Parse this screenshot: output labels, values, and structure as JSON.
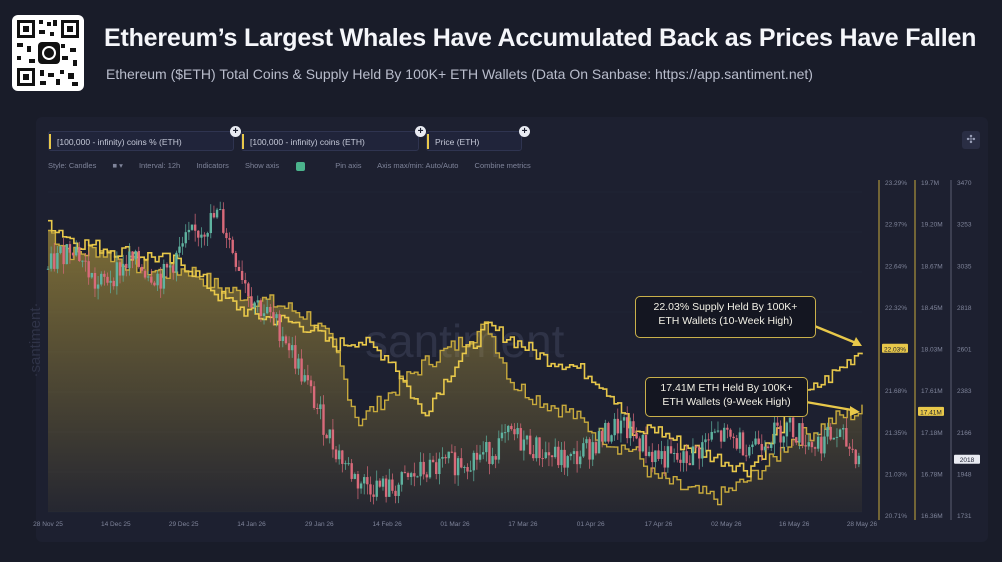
{
  "header": {
    "title": "Ethereum’s Largest Whales Have Accumulated Back as Prices Have Fallen",
    "subtitle": "Ethereum ($ETH) Total Coins & Supply Held By 100K+ ETH Wallets (Data On Sanbase: https://app.santiment.net)"
  },
  "toolbar": {
    "metric_1": "[100,000 - infinity) coins % (ETH)",
    "metric_2": "[100,000 - infinity) coins (ETH)",
    "metric_3": "Price (ETH)",
    "style": "Style: Candles",
    "interval": "Interval: 12h",
    "indicators": "Indicators",
    "show_axis": "Show axis",
    "pin_axis": "Pin axis",
    "axis_minmax": "Axis max/min: Auto/Auto",
    "combine": "Combine metrics"
  },
  "watermark": {
    "logo": "santiment",
    "side": "·santiment·"
  },
  "callouts": {
    "supply": {
      "line1": "22.03% Supply Held By 100K+",
      "line2": "ETH Wallets (10-Week High)"
    },
    "coins": {
      "line1": "17.41M ETH Held By 100K+",
      "line2": "ETH Wallets (9-Week High)"
    }
  },
  "chart_data": {
    "type": "line",
    "title": "Ethereum’s Largest Whales Have Accumulated Back as Prices Have Fallen",
    "x_tick_labels": [
      "28 Nov 25",
      "14 Dec 25",
      "29 Dec 25",
      "14 Jan 26",
      "29 Jan 26",
      "14 Feb 26",
      "01 Mar 26",
      "17 Mar 26",
      "01 Apr 26",
      "17 Apr 26",
      "02 May 26",
      "16 May 26",
      "28 May 26"
    ],
    "axes": {
      "supply_pct": {
        "ticks": [
          "23.29%",
          "22.97%",
          "22.64%",
          "22.32%",
          "22.00%",
          "21.68%",
          "21.35%",
          "21.03%",
          "20.71%"
        ],
        "ylim": [
          20.71,
          23.29
        ],
        "current_label": "22.03%"
      },
      "coins": {
        "ticks": [
          "19.7M",
          "19.20M",
          "18.67M",
          "18.45M",
          "18.03M",
          "17.61M",
          "17.18M",
          "16.78M",
          "16.36M"
        ],
        "ylim": [
          16.36,
          19.7
        ],
        "current_label": "17.41M"
      },
      "price": {
        "ticks": [
          "3470",
          "3253",
          "3035",
          "2818",
          "2601",
          "2383",
          "2166",
          "1948",
          "1731"
        ],
        "ylim": [
          1731,
          3470
        ],
        "current_label": "2018"
      }
    },
    "series": [
      {
        "name": "[100,000 - infinity) coins % (ETH)",
        "color": "#e8c84a",
        "x": [
          0,
          3,
          6,
          10,
          14,
          17,
          21,
          25,
          29,
          32,
          35,
          38,
          42,
          46,
          50,
          54,
          57,
          61,
          64,
          67,
          70,
          72,
          74,
          78,
          82,
          86,
          89,
          91,
          94,
          97,
          100
        ],
        "values": [
          23.05,
          22.9,
          22.85,
          22.8,
          22.75,
          22.7,
          22.45,
          22.3,
          22.25,
          22.2,
          22.05,
          22.1,
          21.95,
          21.5,
          21.9,
          22.2,
          22.1,
          21.95,
          21.9,
          21.8,
          21.6,
          21.3,
          21.4,
          21.25,
          21.15,
          21.05,
          21.3,
          21.5,
          21.7,
          21.85,
          22.03
        ]
      },
      {
        "name": "[100,000 - infinity) coins (ETH)",
        "color": "#c8aa3c",
        "x": [
          0,
          3,
          6,
          10,
          14,
          17,
          21,
          25,
          29,
          32,
          35,
          38,
          42,
          46,
          50,
          54,
          57,
          61,
          64,
          67,
          70,
          72,
          74,
          78,
          82,
          86,
          89,
          91,
          94,
          97,
          100
        ],
        "values": [
          19.3,
          19.05,
          19.1,
          18.95,
          18.85,
          18.9,
          18.7,
          18.6,
          18.5,
          18.4,
          18.1,
          17.3,
          17.6,
          17.9,
          18.1,
          18.3,
          17.7,
          17.5,
          17.4,
          17.2,
          17.05,
          17.0,
          16.75,
          16.6,
          16.5,
          16.7,
          16.9,
          17.1,
          17.2,
          17.35,
          17.41
        ]
      },
      {
        "name": "Price (ETH)",
        "color": "#5fb3a0",
        "x": [
          0,
          3,
          6,
          10,
          14,
          17,
          21,
          25,
          29,
          32,
          35,
          38,
          42,
          46,
          50,
          54,
          57,
          61,
          64,
          67,
          70,
          72,
          74,
          78,
          82,
          86,
          89,
          91,
          94,
          97,
          100
        ],
        "values": [
          3050,
          3200,
          2950,
          3100,
          3000,
          3200,
          3350,
          2900,
          2700,
          2400,
          2100,
          1900,
          1850,
          1950,
          2000,
          2050,
          2150,
          2050,
          2000,
          2100,
          2200,
          2150,
          2050,
          2000,
          2150,
          2100,
          2150,
          2200,
          2100,
          2150,
          2018
        ]
      }
    ]
  }
}
